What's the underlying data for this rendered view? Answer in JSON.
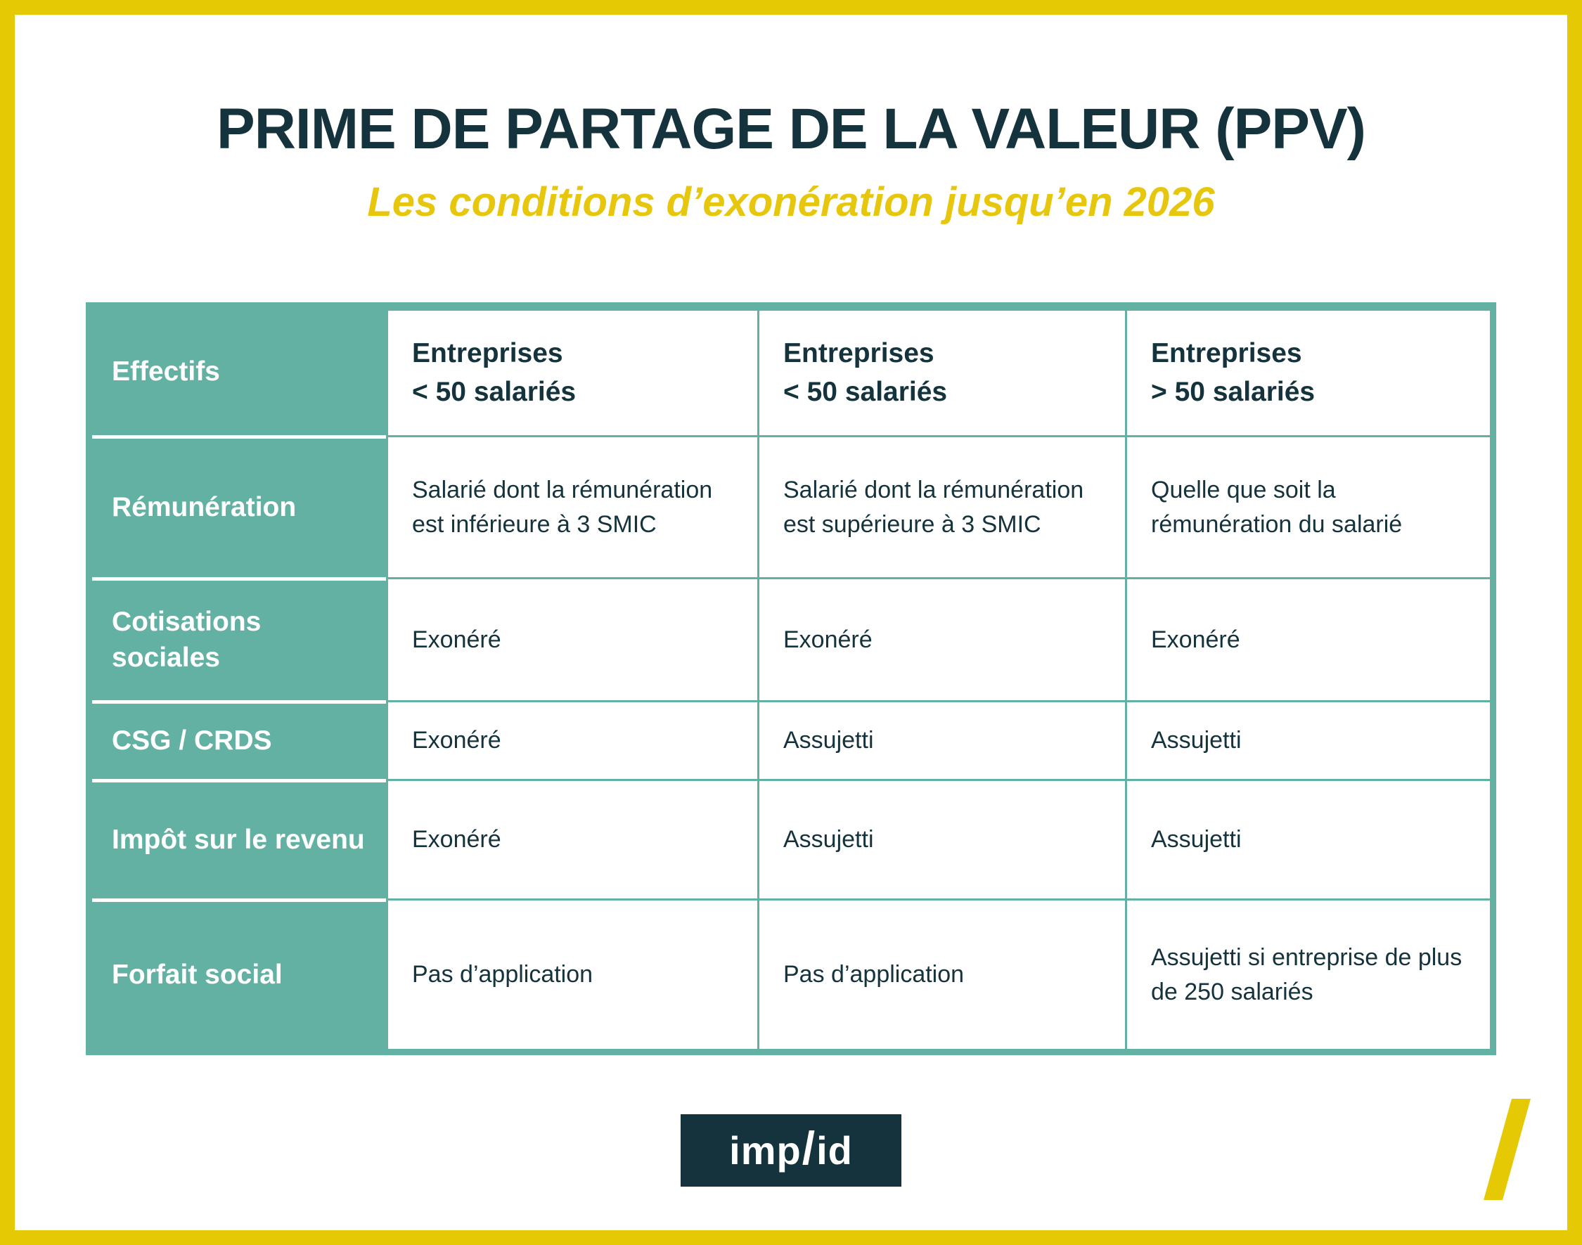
{
  "title": "PRIME DE PARTAGE DE LA VALEUR (PPV)",
  "subtitle": "Les conditions d’exonération jusqu’en 2026",
  "table": {
    "corner_label": "Effectifs",
    "column_headers": [
      "Entreprises\n< 50 salariés",
      "Entreprises\n< 50 salariés",
      "Entreprises\n> 50 salariés"
    ],
    "rows": [
      {
        "label": "Rémunération",
        "cells": [
          "Salarié dont la rémunération est inférieure à 3 SMIC",
          "Salarié dont la rémunération est supérieure à 3 SMIC",
          "Quelle que soit la rémunération du salarié"
        ]
      },
      {
        "label": "Cotisations sociales",
        "cells": [
          "Exonéré",
          "Exonéré",
          "Exonéré"
        ]
      },
      {
        "label": "CSG / CRDS",
        "cells": [
          "Exonéré",
          "Assujetti",
          "Assujetti"
        ]
      },
      {
        "label": "Impôt sur le revenu",
        "cells": [
          "Exonéré",
          "Assujetti",
          "Assujetti"
        ]
      },
      {
        "label": "Forfait social",
        "cells": [
          "Pas d’application",
          "Pas d’application",
          "Assujetti si entreprise de plus de 250 salariés"
        ]
      }
    ]
  },
  "footer": {
    "logo": {
      "part1": "imp",
      "slash": "/",
      "part2": "id"
    }
  },
  "colors": {
    "teal": "#63B1A3",
    "navy": "#15333C",
    "yellow": "#E5C905",
    "white": "#FFFFFF"
  }
}
